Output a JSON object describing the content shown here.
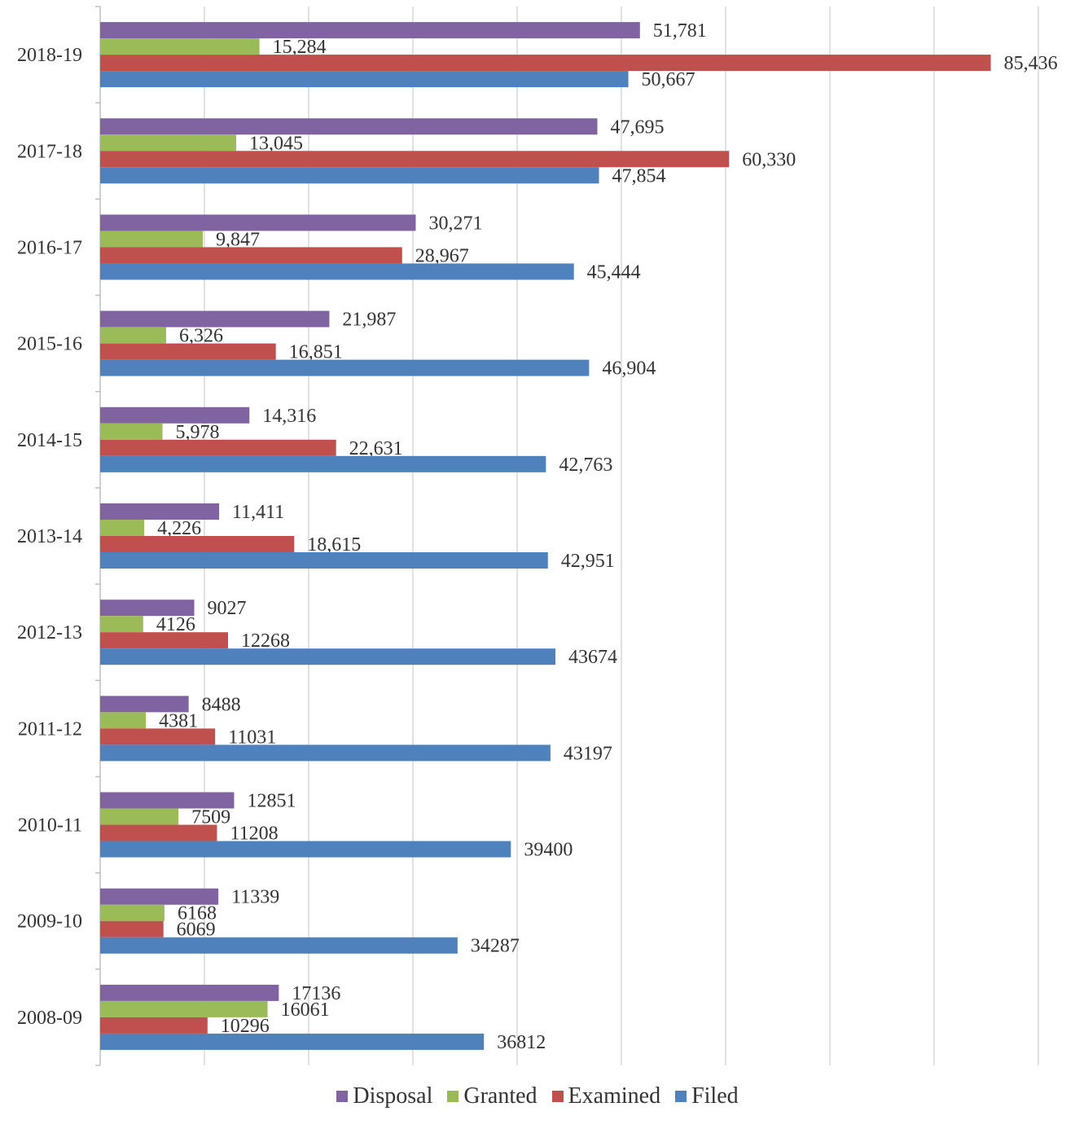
{
  "chart_data": {
    "type": "bar",
    "orientation": "horizontal",
    "title": "",
    "xlabel": "",
    "ylabel": "",
    "xlim": [
      0,
      90000
    ],
    "x_ticks": [
      "0",
      "10000",
      "20000",
      "30000",
      "40000",
      "50000",
      "60000",
      "70000",
      "80000",
      "90000"
    ],
    "grid": "vertical",
    "legend_position": "bottom",
    "categories": [
      "2018-19",
      "2017-18",
      "2016-17",
      "2015-16",
      "2014-15",
      "2013-14",
      "2012-13",
      "2011-12",
      "2010-11",
      "2009-10",
      "2008-09"
    ],
    "series": [
      {
        "name": "Disposal",
        "color": "#8064A2",
        "values": [
          51781,
          47695,
          30271,
          21987,
          14316,
          11411,
          9027,
          8488,
          12851,
          11339,
          17136
        ],
        "labels": [
          "51,781",
          "47,695",
          "30,271",
          "21,987",
          "14,316",
          "11,411",
          "9027",
          "8488",
          "12851",
          "11339",
          "17136"
        ]
      },
      {
        "name": "Granted",
        "color": "#9BBB59",
        "values": [
          15284,
          13045,
          9847,
          6326,
          5978,
          4226,
          4126,
          4381,
          7509,
          6168,
          16061
        ],
        "labels": [
          "15,284",
          "13,045",
          "9,847",
          "6,326",
          "5,978",
          "4,226",
          "4126",
          "4381",
          "7509",
          "6168",
          "16061"
        ]
      },
      {
        "name": "Examined",
        "color": "#C0504D",
        "values": [
          85436,
          60330,
          28967,
          16851,
          22631,
          18615,
          12268,
          11031,
          11208,
          6069,
          10296
        ],
        "labels": [
          "85,436",
          "60,330",
          "28,967",
          "16,851",
          "22,631",
          "18,615",
          "12268",
          "11031",
          "11208",
          "6069",
          "10296"
        ]
      },
      {
        "name": "Filed",
        "color": "#4F81BD",
        "values": [
          50667,
          47854,
          45444,
          46904,
          42763,
          42951,
          43674,
          43197,
          39400,
          34287,
          36812
        ],
        "labels": [
          "50,667",
          "47,854",
          "45,444",
          "46,904",
          "42,763",
          "42,951",
          "43674",
          "43197",
          "39400",
          "34287",
          "36812"
        ]
      }
    ]
  }
}
